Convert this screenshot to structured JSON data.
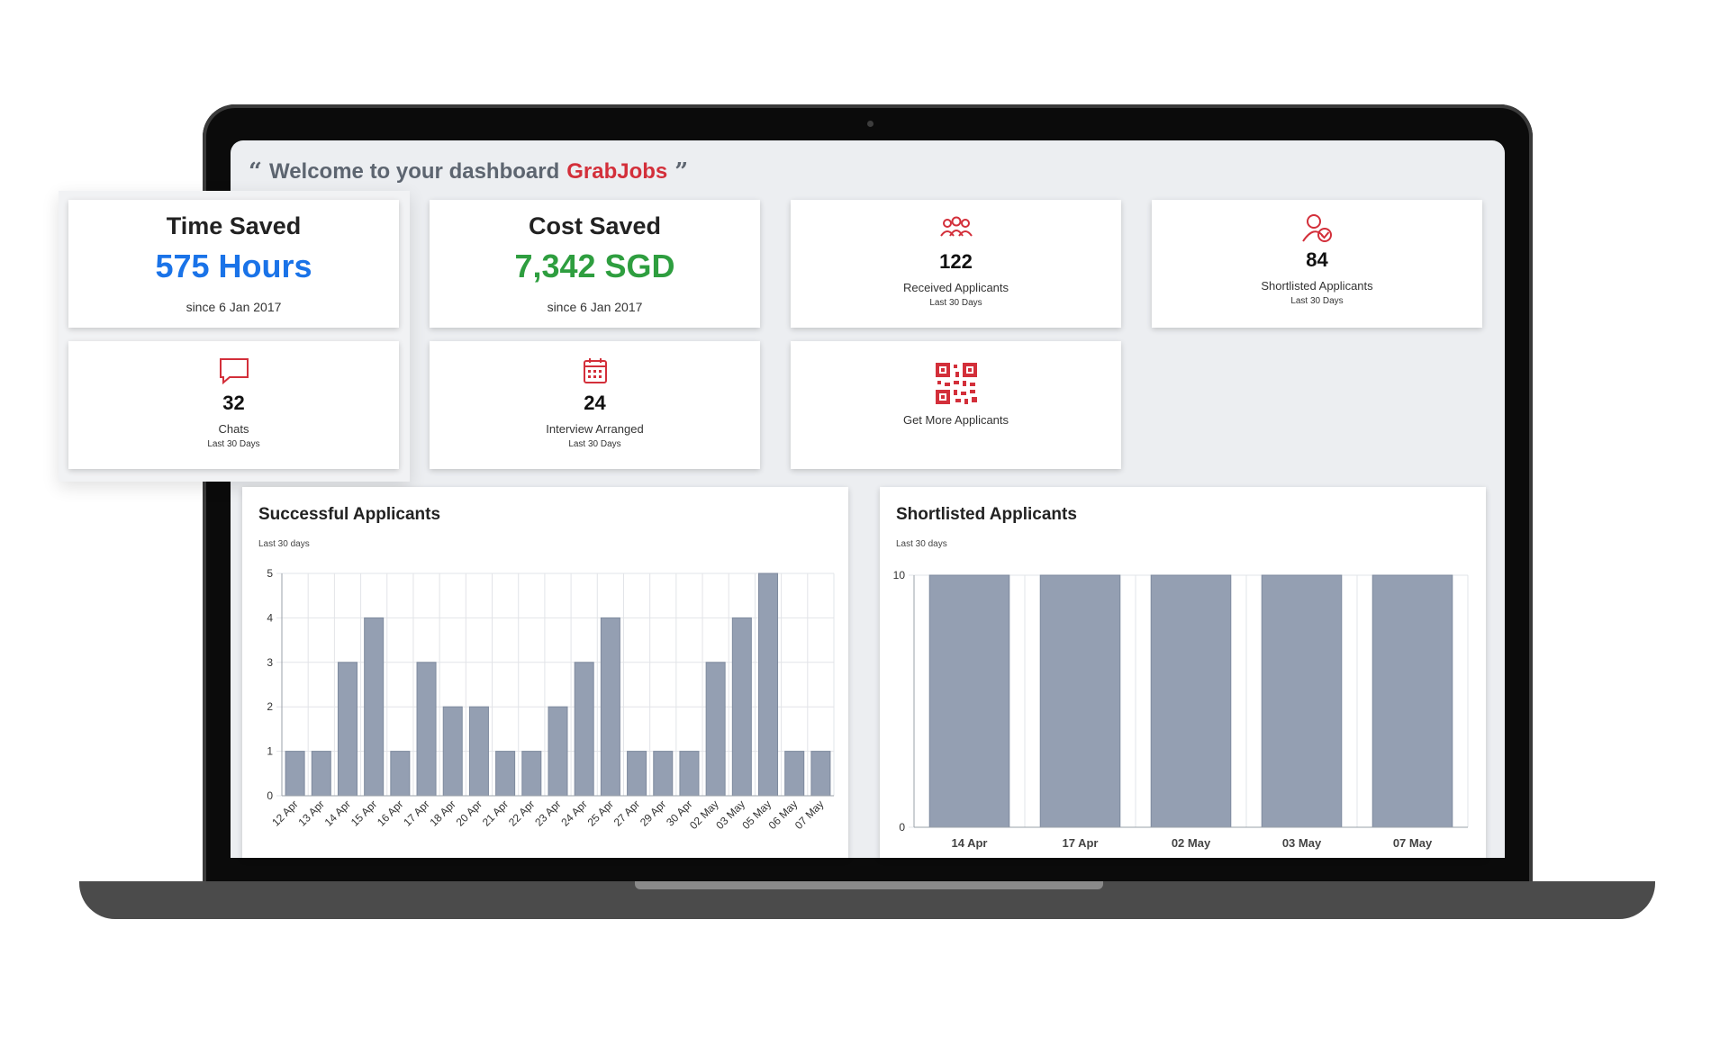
{
  "welcome": {
    "open_quote": "“",
    "text": "Welcome to your dashboard",
    "brand": "GrabJobs",
    "close_quote": "”"
  },
  "stats": {
    "time_saved": {
      "title": "Time Saved",
      "value": "575 Hours",
      "since": "since 6 Jan 2017",
      "color": "#1a73e8"
    },
    "cost_saved": {
      "title": "Cost Saved",
      "value": "7,342 SGD",
      "since": "since 6 Jan 2017",
      "color": "#2e9e3f"
    },
    "received": {
      "icon": "group-icon",
      "count": "122",
      "label": "Received Applicants",
      "sub": "Last 30 Days"
    },
    "shortlisted": {
      "icon": "user-check-icon",
      "count": "84",
      "label": "Shortlisted Applicants",
      "sub": "Last 30 Days"
    },
    "chats": {
      "icon": "chat-icon",
      "count": "32",
      "label": "Chats",
      "sub": "Last 30 Days"
    },
    "interview": {
      "icon": "calendar-icon",
      "count": "24",
      "label": "Interview Arranged",
      "sub": "Last 30 Days"
    },
    "get_more": {
      "icon": "qr-code-icon",
      "label": "Get More Applicants"
    }
  },
  "accent_color": "#d32f3a",
  "bar_color": "#949fb2",
  "chart_data": [
    {
      "type": "bar",
      "title": "Successful Applicants",
      "subtitle": "Last 30 days",
      "categories": [
        "12 Apr",
        "13 Apr",
        "14 Apr",
        "15 Apr",
        "16 Apr",
        "17 Apr",
        "18 Apr",
        "20 Apr",
        "21 Apr",
        "22 Apr",
        "23 Apr",
        "24 Apr",
        "25 Apr",
        "27 Apr",
        "29 Apr",
        "30 Apr",
        "02 May",
        "03 May",
        "05 May",
        "06 May",
        "07 May"
      ],
      "values": [
        1,
        1,
        3,
        4,
        1,
        3,
        2,
        2,
        1,
        1,
        2,
        3,
        4,
        1,
        1,
        1,
        3,
        4,
        5,
        1,
        1
      ],
      "ylim": [
        0,
        5
      ],
      "yticks": [
        0,
        1,
        2,
        3,
        4,
        5
      ],
      "grid": true
    },
    {
      "type": "bar",
      "title": "Shortlisted Applicants",
      "subtitle": "Last 30 days",
      "categories": [
        "14 Apr",
        "17 Apr",
        "02 May",
        "03 May",
        "07 May"
      ],
      "values": [
        10,
        10,
        10,
        10,
        10
      ],
      "ylim": [
        0,
        10
      ],
      "yticks": [
        0,
        10
      ],
      "grid": true
    }
  ]
}
